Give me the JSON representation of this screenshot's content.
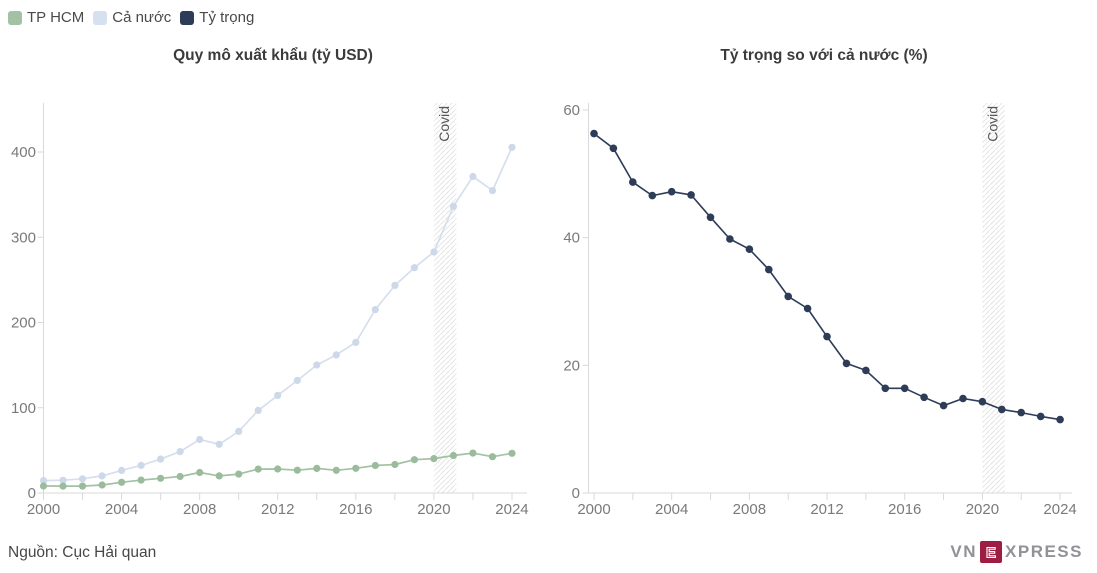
{
  "legend": {
    "items": [
      {
        "label": "TP HCM",
        "color": "#a3c1a4"
      },
      {
        "label": "Cả nước",
        "color": "#d6e0ee"
      },
      {
        "label": "Tỷ trọng",
        "color": "#2d3c57"
      }
    ]
  },
  "chart_data": [
    {
      "type": "line",
      "title": "Quy mô xuất khẩu (tỷ USD)",
      "x": [
        2000,
        2001,
        2002,
        2003,
        2004,
        2005,
        2006,
        2007,
        2008,
        2009,
        2010,
        2011,
        2012,
        2013,
        2014,
        2015,
        2016,
        2017,
        2018,
        2019,
        2020,
        2021,
        2022,
        2023,
        2024
      ],
      "series": [
        {
          "name": "TP HCM",
          "color": "#a3c1a4",
          "dot_color": "#9bbb9d",
          "values": [
            8.2,
            8.1,
            8.1,
            9.4,
            12.5,
            15.1,
            17.2,
            19.3,
            24.0,
            20.0,
            22.2,
            28.0,
            28.1,
            26.8,
            28.8,
            26.6,
            29.0,
            32.3,
            33.4,
            39.1,
            40.4,
            44.0,
            46.8,
            42.6,
            46.6
          ]
        },
        {
          "name": "Cả nước",
          "color": "#d6dfee",
          "dot_color": "#cdd8e9",
          "values": [
            14.5,
            15.0,
            16.7,
            20.1,
            26.5,
            32.4,
            39.8,
            48.6,
            62.7,
            57.1,
            72.2,
            96.9,
            114.5,
            132.0,
            150.2,
            162.0,
            176.6,
            215.1,
            243.5,
            264.3,
            282.7,
            336.2,
            371.3,
            354.7,
            405.5
          ]
        }
      ],
      "ylim": [
        0,
        457
      ],
      "yticks": [
        0,
        100,
        200,
        300,
        400
      ],
      "xticks_labeled": [
        2000,
        2004,
        2008,
        2012,
        2016,
        2020,
        2024
      ],
      "xtick_step": 2,
      "grid": false,
      "covid_band": {
        "from": 2020,
        "to": 2021.15,
        "label": "Covid"
      }
    },
    {
      "type": "line",
      "title": "Tỷ trọng so với cả nước (%)",
      "x": [
        2000,
        2001,
        2002,
        2003,
        2004,
        2005,
        2006,
        2007,
        2008,
        2009,
        2010,
        2011,
        2012,
        2013,
        2014,
        2015,
        2016,
        2017,
        2018,
        2019,
        2020,
        2021,
        2022,
        2023,
        2024
      ],
      "series": [
        {
          "name": "Tỷ trọng",
          "color": "#2d3c57",
          "dot_color": "#2d3c57",
          "values": [
            56.3,
            54.0,
            48.7,
            46.6,
            47.2,
            46.7,
            43.2,
            39.8,
            38.2,
            35.0,
            30.8,
            28.9,
            24.5,
            20.3,
            19.2,
            16.4,
            16.4,
            15.0,
            13.7,
            14.8,
            14.3,
            13.1,
            12.6,
            12.0,
            11.5
          ]
        }
      ],
      "ylim": [
        0,
        61
      ],
      "yticks": [
        0,
        20,
        40,
        60
      ],
      "xticks_labeled": [
        2000,
        2004,
        2008,
        2012,
        2016,
        2020,
        2024
      ],
      "xtick_step": 2,
      "grid": false,
      "covid_band": {
        "from": 2020,
        "to": 2021.15,
        "label": "Covid"
      }
    }
  ],
  "footer": {
    "source": "Nguồn: Cục Hải quan"
  },
  "logo": {
    "vn": "VN",
    "e": "E",
    "xpress": "XPRESS",
    "color": "#9d1d43"
  }
}
